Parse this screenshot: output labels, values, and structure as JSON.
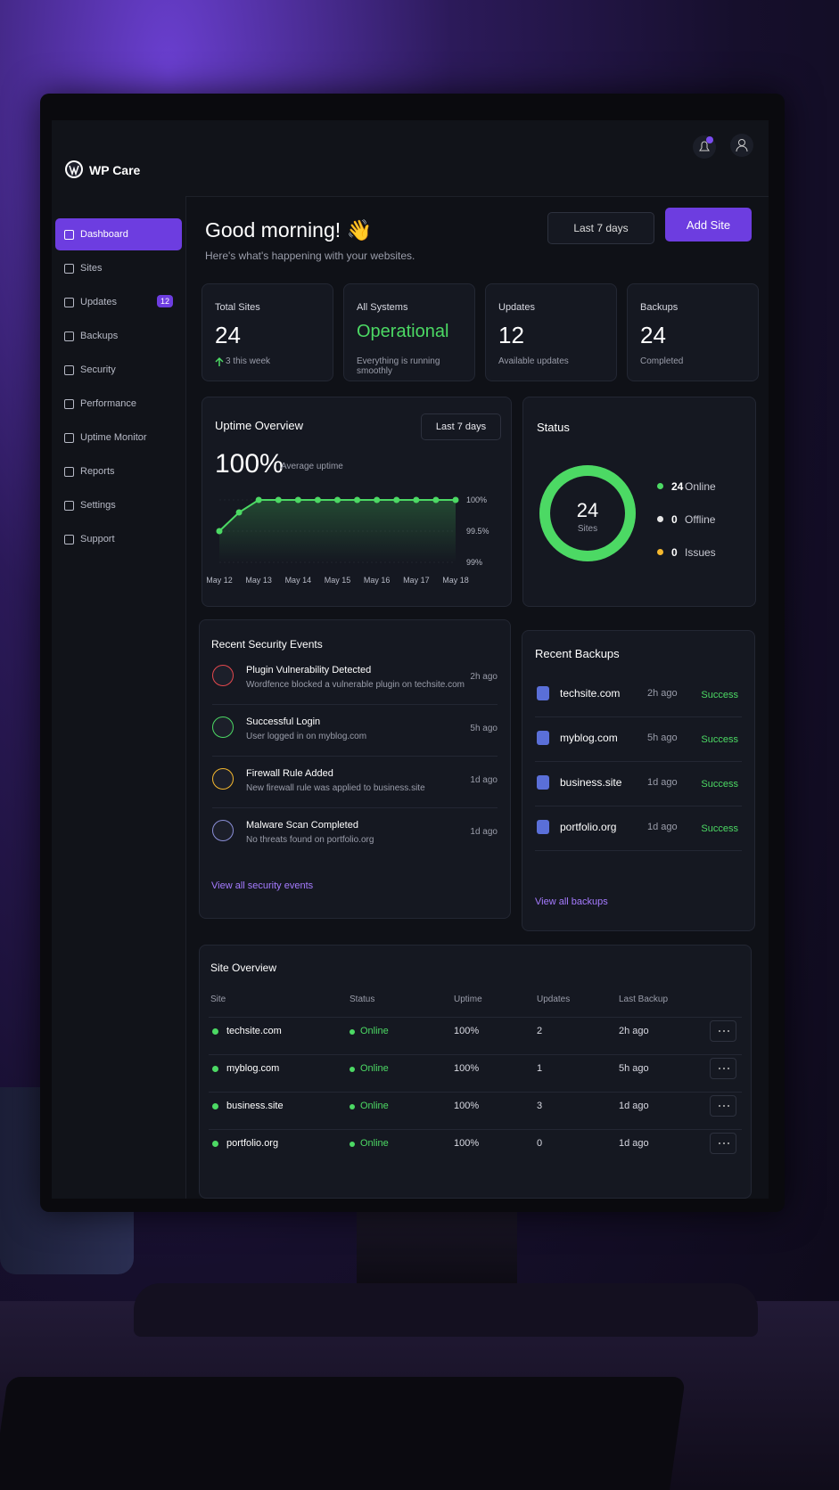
{
  "app": {
    "name": "WP Care"
  },
  "sidebar": [
    {
      "label": "Dashboard",
      "active": true
    },
    {
      "label": "Sites"
    },
    {
      "label": "Updates",
      "badge": "12"
    },
    {
      "label": "Backups"
    },
    {
      "label": "Security"
    },
    {
      "label": "Performance"
    },
    {
      "label": "Uptime Monitor"
    },
    {
      "label": "Reports"
    },
    {
      "label": "Settings"
    },
    {
      "label": "Support"
    }
  ],
  "header": {
    "greeting": "Good morning! 👋",
    "subtitle": "Here's what's happening with your websites.",
    "range": "Last 7 days",
    "add_button": "Add Site"
  },
  "stats": [
    {
      "label": "Total Sites",
      "value": 24,
      "note": "3 this week"
    },
    {
      "label": "All Systems",
      "value": "Operational",
      "note": "Everything is running smoothly",
      "color": "#4cd964"
    },
    {
      "label": "Updates",
      "value": 12,
      "note": "Available updates"
    },
    {
      "label": "Backups",
      "value": 24,
      "note": "Completed"
    }
  ],
  "uptime": {
    "title": "Uptime Overview",
    "range": "Last 7 days",
    "value": "100%",
    "value_note": "Average uptime",
    "chart_data": {
      "type": "line",
      "color": "#4cd964",
      "categories": [
        "May 12",
        null,
        "May 13",
        null,
        "May 14",
        null,
        "May 15",
        null,
        "May 16",
        null,
        "May 17",
        null,
        "May 18"
      ],
      "values": [
        99.5,
        99.8,
        100,
        100,
        100,
        100,
        100,
        100,
        100,
        100,
        100,
        100,
        100
      ],
      "ylim": [
        99,
        100
      ],
      "yticks": [
        {
          "value": 99,
          "label": "99%"
        },
        {
          "value": 99.5,
          "label": "99.5%"
        },
        {
          "value": 100,
          "label": "100%"
        }
      ]
    }
  },
  "status": {
    "title": "Status",
    "total": 24,
    "total_label": "Sites",
    "legend": [
      {
        "count": 24,
        "label": "Online",
        "color": "#4cd964"
      },
      {
        "count": 0,
        "label": "Offline",
        "color": "#e5e5e5"
      },
      {
        "count": 0,
        "label": "Issues",
        "color": "#f5b82e"
      }
    ]
  },
  "security": {
    "title": "Recent Security Events",
    "events": [
      {
        "title": "Plugin Vulnerability Detected",
        "desc": "Wordfence blocked a vulnerable plugin on techsite.com",
        "time": "2h ago",
        "color": "#e5484d"
      },
      {
        "title": "Successful Login",
        "desc": "User logged in on myblog.com",
        "time": "5h ago",
        "color": "#4cd964"
      },
      {
        "title": "Firewall Rule Added",
        "desc": "New firewall rule was applied to business.site",
        "time": "1d ago",
        "color": "#f5b82e"
      },
      {
        "title": "Malware Scan Completed",
        "desc": "No threats found on portfolio.org",
        "time": "1d ago",
        "color": "#8b8fd8"
      }
    ],
    "link": "View all security events"
  },
  "backups": {
    "title": "Recent Backups",
    "items": [
      {
        "site": "techsite.com",
        "time": "2h ago",
        "status": "Success"
      },
      {
        "site": "myblog.com",
        "time": "5h ago",
        "status": "Success"
      },
      {
        "site": "business.site",
        "time": "1d ago",
        "status": "Success"
      },
      {
        "site": "portfolio.org",
        "time": "1d ago",
        "status": "Success"
      }
    ],
    "link": "View all backups"
  },
  "sites": {
    "title": "Site Overview",
    "columns": [
      "Site",
      "Status",
      "Uptime",
      "Updates",
      "Last Backup"
    ],
    "rows": [
      [
        "techsite.com",
        "Online",
        "100%",
        2,
        "2h ago"
      ],
      [
        "myblog.com",
        "Online",
        "100%",
        1,
        "5h ago"
      ],
      [
        "business.site",
        "Online",
        "100%",
        3,
        "1d ago"
      ],
      [
        "portfolio.org",
        "Online",
        "100%",
        0,
        "1d ago"
      ]
    ]
  }
}
